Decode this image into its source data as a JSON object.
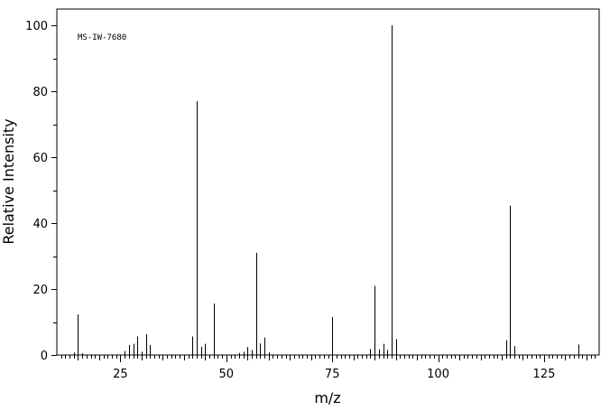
{
  "chart_data": {
    "type": "bar",
    "annotation": "MS-IW-7680",
    "xlabel": "m/z",
    "ylabel": "Relative Intensity",
    "xlim": [
      10,
      138
    ],
    "ylim": [
      0,
      100
    ],
    "x_ticks": [
      25,
      50,
      75,
      100,
      125
    ],
    "y_ticks": [
      0,
      20,
      40,
      60,
      80,
      100
    ],
    "grid": false,
    "peaks": [
      {
        "mz": 14,
        "intensity": 0.8
      },
      {
        "mz": 15,
        "intensity": 12.3
      },
      {
        "mz": 16,
        "intensity": 0.5
      },
      {
        "mz": 26,
        "intensity": 1.2
      },
      {
        "mz": 27,
        "intensity": 3.0
      },
      {
        "mz": 28,
        "intensity": 3.4
      },
      {
        "mz": 29,
        "intensity": 5.6
      },
      {
        "mz": 30,
        "intensity": 1.0
      },
      {
        "mz": 31,
        "intensity": 6.3
      },
      {
        "mz": 32,
        "intensity": 3.0
      },
      {
        "mz": 42,
        "intensity": 5.6
      },
      {
        "mz": 43,
        "intensity": 77.0
      },
      {
        "mz": 44,
        "intensity": 2.5
      },
      {
        "mz": 45,
        "intensity": 3.4
      },
      {
        "mz": 47,
        "intensity": 15.6
      },
      {
        "mz": 53,
        "intensity": 0.6
      },
      {
        "mz": 54,
        "intensity": 1.0
      },
      {
        "mz": 55,
        "intensity": 2.4
      },
      {
        "mz": 56,
        "intensity": 1.5
      },
      {
        "mz": 57,
        "intensity": 31.0
      },
      {
        "mz": 58,
        "intensity": 3.5
      },
      {
        "mz": 59,
        "intensity": 5.3
      },
      {
        "mz": 60,
        "intensity": 0.8
      },
      {
        "mz": 75,
        "intensity": 11.5
      },
      {
        "mz": 84,
        "intensity": 1.8
      },
      {
        "mz": 85,
        "intensity": 21.0
      },
      {
        "mz": 86,
        "intensity": 1.7
      },
      {
        "mz": 87,
        "intensity": 3.4
      },
      {
        "mz": 88,
        "intensity": 1.5
      },
      {
        "mz": 89,
        "intensity": 100.0
      },
      {
        "mz": 90,
        "intensity": 4.8
      },
      {
        "mz": 116,
        "intensity": 4.5
      },
      {
        "mz": 117,
        "intensity": 45.3
      },
      {
        "mz": 118,
        "intensity": 2.7
      },
      {
        "mz": 133,
        "intensity": 3.2
      }
    ]
  }
}
